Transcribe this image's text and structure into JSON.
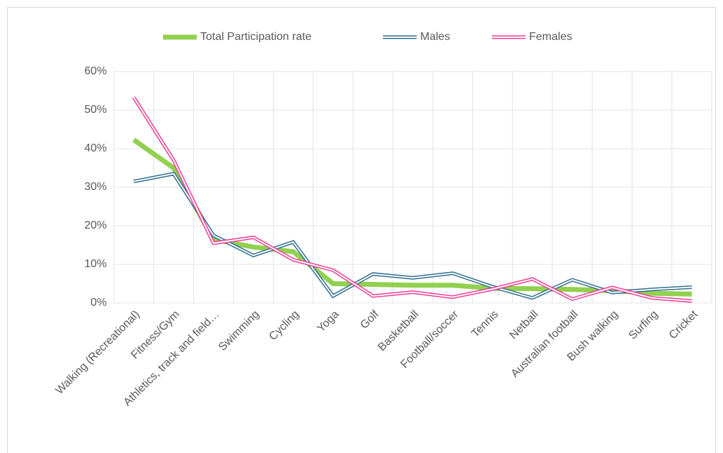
{
  "chart_data": {
    "type": "line",
    "categories": [
      "Walking (Recreational)",
      "Fitness/Gym",
      "Athletics, track and field…",
      "Swimming",
      "Cycling",
      "Yoga",
      "Golf",
      "Basketball",
      "Football/soccer",
      "Tennis",
      "Netball",
      "Australian football",
      "Bush walking",
      "Surfing",
      "Cricket"
    ],
    "series": [
      {
        "name": "Total Participation rate",
        "color": "#92d050",
        "values": [
          42.3,
          35,
          16.5,
          14.5,
          13.3,
          5,
          4.8,
          4.6,
          4.6,
          3.8,
          3.7,
          3.5,
          3.2,
          2.5,
          2.3
        ]
      },
      {
        "name": "Males",
        "color": "#2e6e8e",
        "values": [
          31.5,
          33.5,
          17.5,
          12.3,
          15.8,
          1.8,
          7.5,
          6.5,
          7.7,
          4.2,
          1.3,
          6,
          2.7,
          3.5,
          4.1
        ]
      },
      {
        "name": "Females",
        "color": "#ee3d96",
        "values": [
          53.3,
          37,
          15.5,
          17,
          11.2,
          8.5,
          1.8,
          2.8,
          1.5,
          3.6,
          6.2,
          1,
          4,
          1.3,
          0.5
        ]
      }
    ],
    "ylim": [
      0,
      60
    ],
    "yticks": [
      {
        "value": 0,
        "label": "0%"
      },
      {
        "value": 10,
        "label": "10%"
      },
      {
        "value": 20,
        "label": "20%"
      },
      {
        "value": 30,
        "label": "30%"
      },
      {
        "value": 40,
        "label": "40%"
      },
      {
        "value": 50,
        "label": "50%"
      },
      {
        "value": 60,
        "label": "60%"
      }
    ],
    "grid": true,
    "legend": "top"
  }
}
